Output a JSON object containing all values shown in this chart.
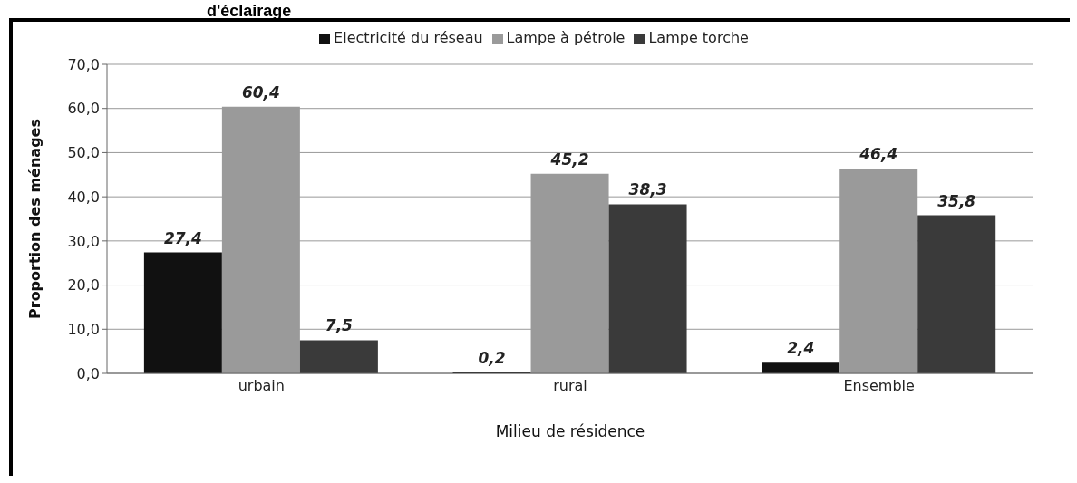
{
  "chart_data": {
    "type": "bar",
    "title": "d'éclairage",
    "xlabel": "Milieu de résidence",
    "ylabel": "Proportion des ménages",
    "categories": [
      "urbain",
      "rural",
      "Ensemble"
    ],
    "series": [
      {
        "name": "Electricité du réseau",
        "color": "#111111",
        "values": [
          27.4,
          0.2,
          2.4
        ],
        "value_labels": [
          "27,4",
          "0,2",
          "2,4"
        ]
      },
      {
        "name": "Lampe à pétrole",
        "color": "#9a9a9a",
        "values": [
          60.4,
          45.2,
          46.4
        ],
        "value_labels": [
          "60,4",
          "45,2",
          "46,4"
        ]
      },
      {
        "name": "Lampe torche",
        "color": "#3a3a3a",
        "values": [
          7.5,
          38.3,
          35.8
        ],
        "value_labels": [
          "7,5",
          "38,3",
          "35,8"
        ]
      }
    ],
    "ylim": [
      0,
      70
    ],
    "yticks": [
      {
        "value": 0,
        "label": "0,0"
      },
      {
        "value": 10,
        "label": "10,0"
      },
      {
        "value": 20,
        "label": "20,0"
      },
      {
        "value": 30,
        "label": "30,0"
      },
      {
        "value": 40,
        "label": "40,0"
      },
      {
        "value": 50,
        "label": "50,0"
      },
      {
        "value": 60,
        "label": "60,0"
      },
      {
        "value": 70,
        "label": "70,0"
      }
    ],
    "grid": "y",
    "legend": "top"
  }
}
